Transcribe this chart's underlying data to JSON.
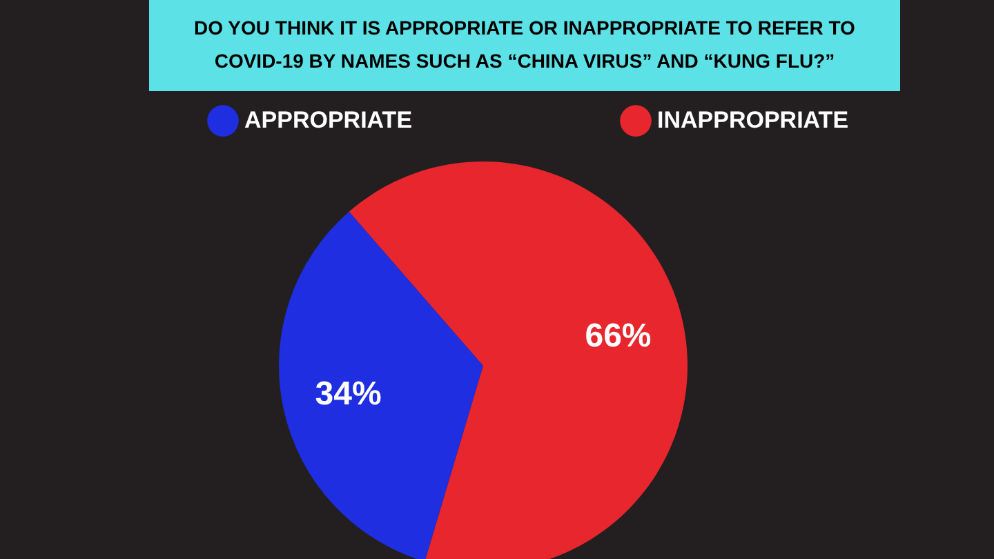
{
  "chart_data": {
    "type": "pie",
    "title": "DO YOU THINK IT IS APPROPRIATE OR INAPPROPRIATE TO REFER TO COVID-19 BY NAMES SUCH AS “CHINA VIRUS” AND “KUNG FLU?”",
    "categories": [
      "APPROPRIATE",
      "INAPPROPRIATE"
    ],
    "values": [
      34,
      66
    ],
    "colors": [
      "#1f2ee0",
      "#e8262e"
    ],
    "value_labels": [
      "34%",
      "66%"
    ],
    "legend": "top"
  }
}
